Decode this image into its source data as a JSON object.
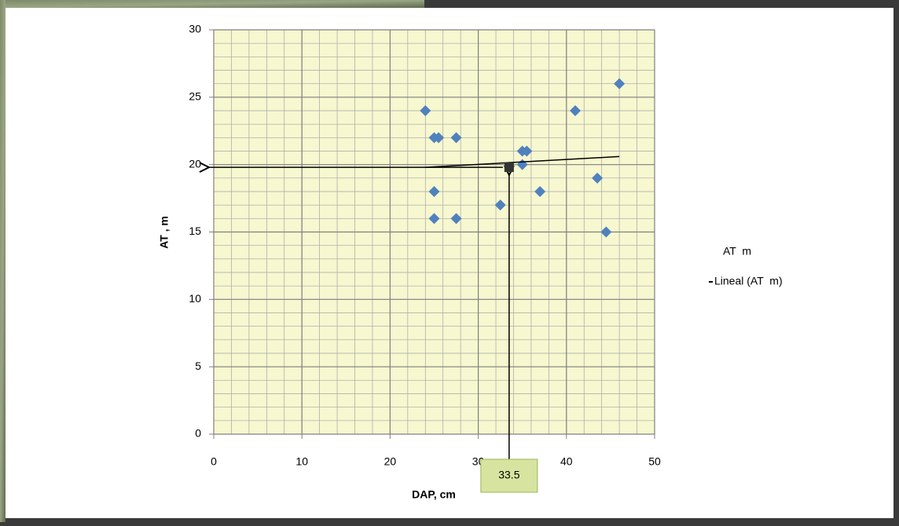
{
  "chart_data": {
    "type": "scatter",
    "x_label": "DAP, cm",
    "y_label": "AT , m",
    "xlim": [
      0,
      50
    ],
    "xticks": [
      0,
      10,
      20,
      30,
      40,
      50
    ],
    "ylim": [
      0,
      30
    ],
    "yticks": [
      0,
      5,
      10,
      15,
      20,
      25,
      30
    ],
    "grid": true,
    "minor_grid": {
      "x": 2,
      "y": 1
    },
    "legend": "right",
    "series": [
      {
        "name": "AT  m",
        "color": "#4f81bd",
        "type": "scatter",
        "x": [
          24,
          25,
          25.5,
          27.5,
          25,
          25,
          27.5,
          32.5,
          35,
          35.5,
          35,
          37,
          41,
          43.5,
          44.5,
          46
        ],
        "values": [
          24,
          22,
          22,
          22,
          18,
          16,
          16,
          17,
          21,
          21,
          20,
          18,
          24,
          19,
          15,
          26
        ]
      },
      {
        "name": "Lineal (AT  m)",
        "color": "#000000",
        "type": "line",
        "x": [
          24,
          46
        ],
        "values": [
          19.8,
          20.6
        ]
      }
    ],
    "annotation": {
      "x": 33.5,
      "y": 19.8,
      "label": "33.5"
    }
  }
}
